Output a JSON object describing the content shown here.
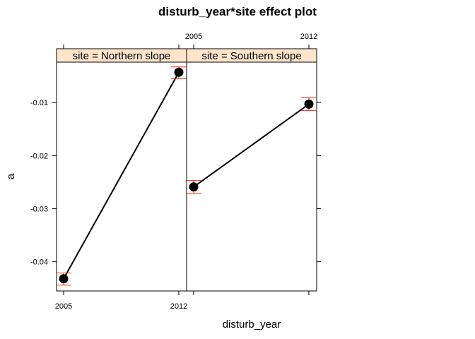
{
  "chart_data": {
    "type": "line",
    "title": "disturb_year*site effect plot",
    "xlabel": "disturb_year",
    "ylabel": "a",
    "categories": [
      "2005",
      "2012"
    ],
    "ylim": [
      -0.0455,
      -0.0024
    ],
    "yticks": [
      "-0.01",
      "-0.02",
      "-0.03",
      "-0.04"
    ],
    "ytick_values": [
      -0.01,
      -0.02,
      -0.03,
      -0.04
    ],
    "strip_color": "#ffe5cc",
    "line_color": "#000000",
    "error_color": "#ff2222",
    "panels": [
      {
        "strip_label": "site = Northern slope",
        "values": [
          -0.0432,
          -0.0043
        ],
        "lower": [
          -0.0444,
          -0.0055
        ],
        "upper": [
          -0.0421,
          -0.0033
        ]
      },
      {
        "strip_label": "site = Southern slope",
        "values": [
          -0.0259,
          -0.0103
        ],
        "lower": [
          -0.0271,
          -0.0115
        ],
        "upper": [
          -0.0247,
          -0.0091
        ]
      }
    ]
  }
}
